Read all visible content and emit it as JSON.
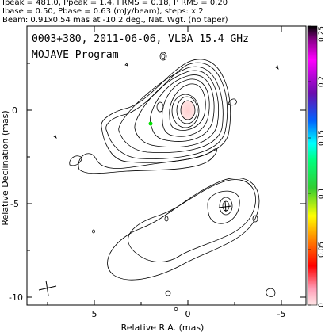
{
  "header": {
    "line1": "Ipeak = 481.0, Ppeak = 1.4, I RMS = 0.18, P RMS = 0.20",
    "line2": "Ibase = 0.50, Pbase = 0.63 (mJy/beam), steps: x 2",
    "line3": "Beam: 0.91x0.54 mas at -10.2 deg., Nat. Wgt. (no taper)"
  },
  "plot": {
    "title": "0003+380, 2011-06-06, VLBA 15.4 GHz",
    "subtitle": "MOJAVE Program",
    "xlabel": "Relative R.A. (mas)",
    "ylabel": "Relative Declination (mas)",
    "x_ticks": [
      "5",
      "0",
      "-5"
    ],
    "y_ticks": [
      "0",
      "-5",
      "-10"
    ]
  },
  "colorbar": {
    "ticks": [
      "0.25",
      "0.2",
      "0.15",
      "0.1",
      "0.05",
      "0"
    ],
    "colors": [
      "#000000",
      "#4b0082",
      "#8a2be2",
      "#0000ff",
      "#00bfff",
      "#00ff00",
      "#adff2f",
      "#ffff00",
      "#ffa500",
      "#ff0000",
      "#ff69b4",
      "#ffe4e1"
    ]
  }
}
